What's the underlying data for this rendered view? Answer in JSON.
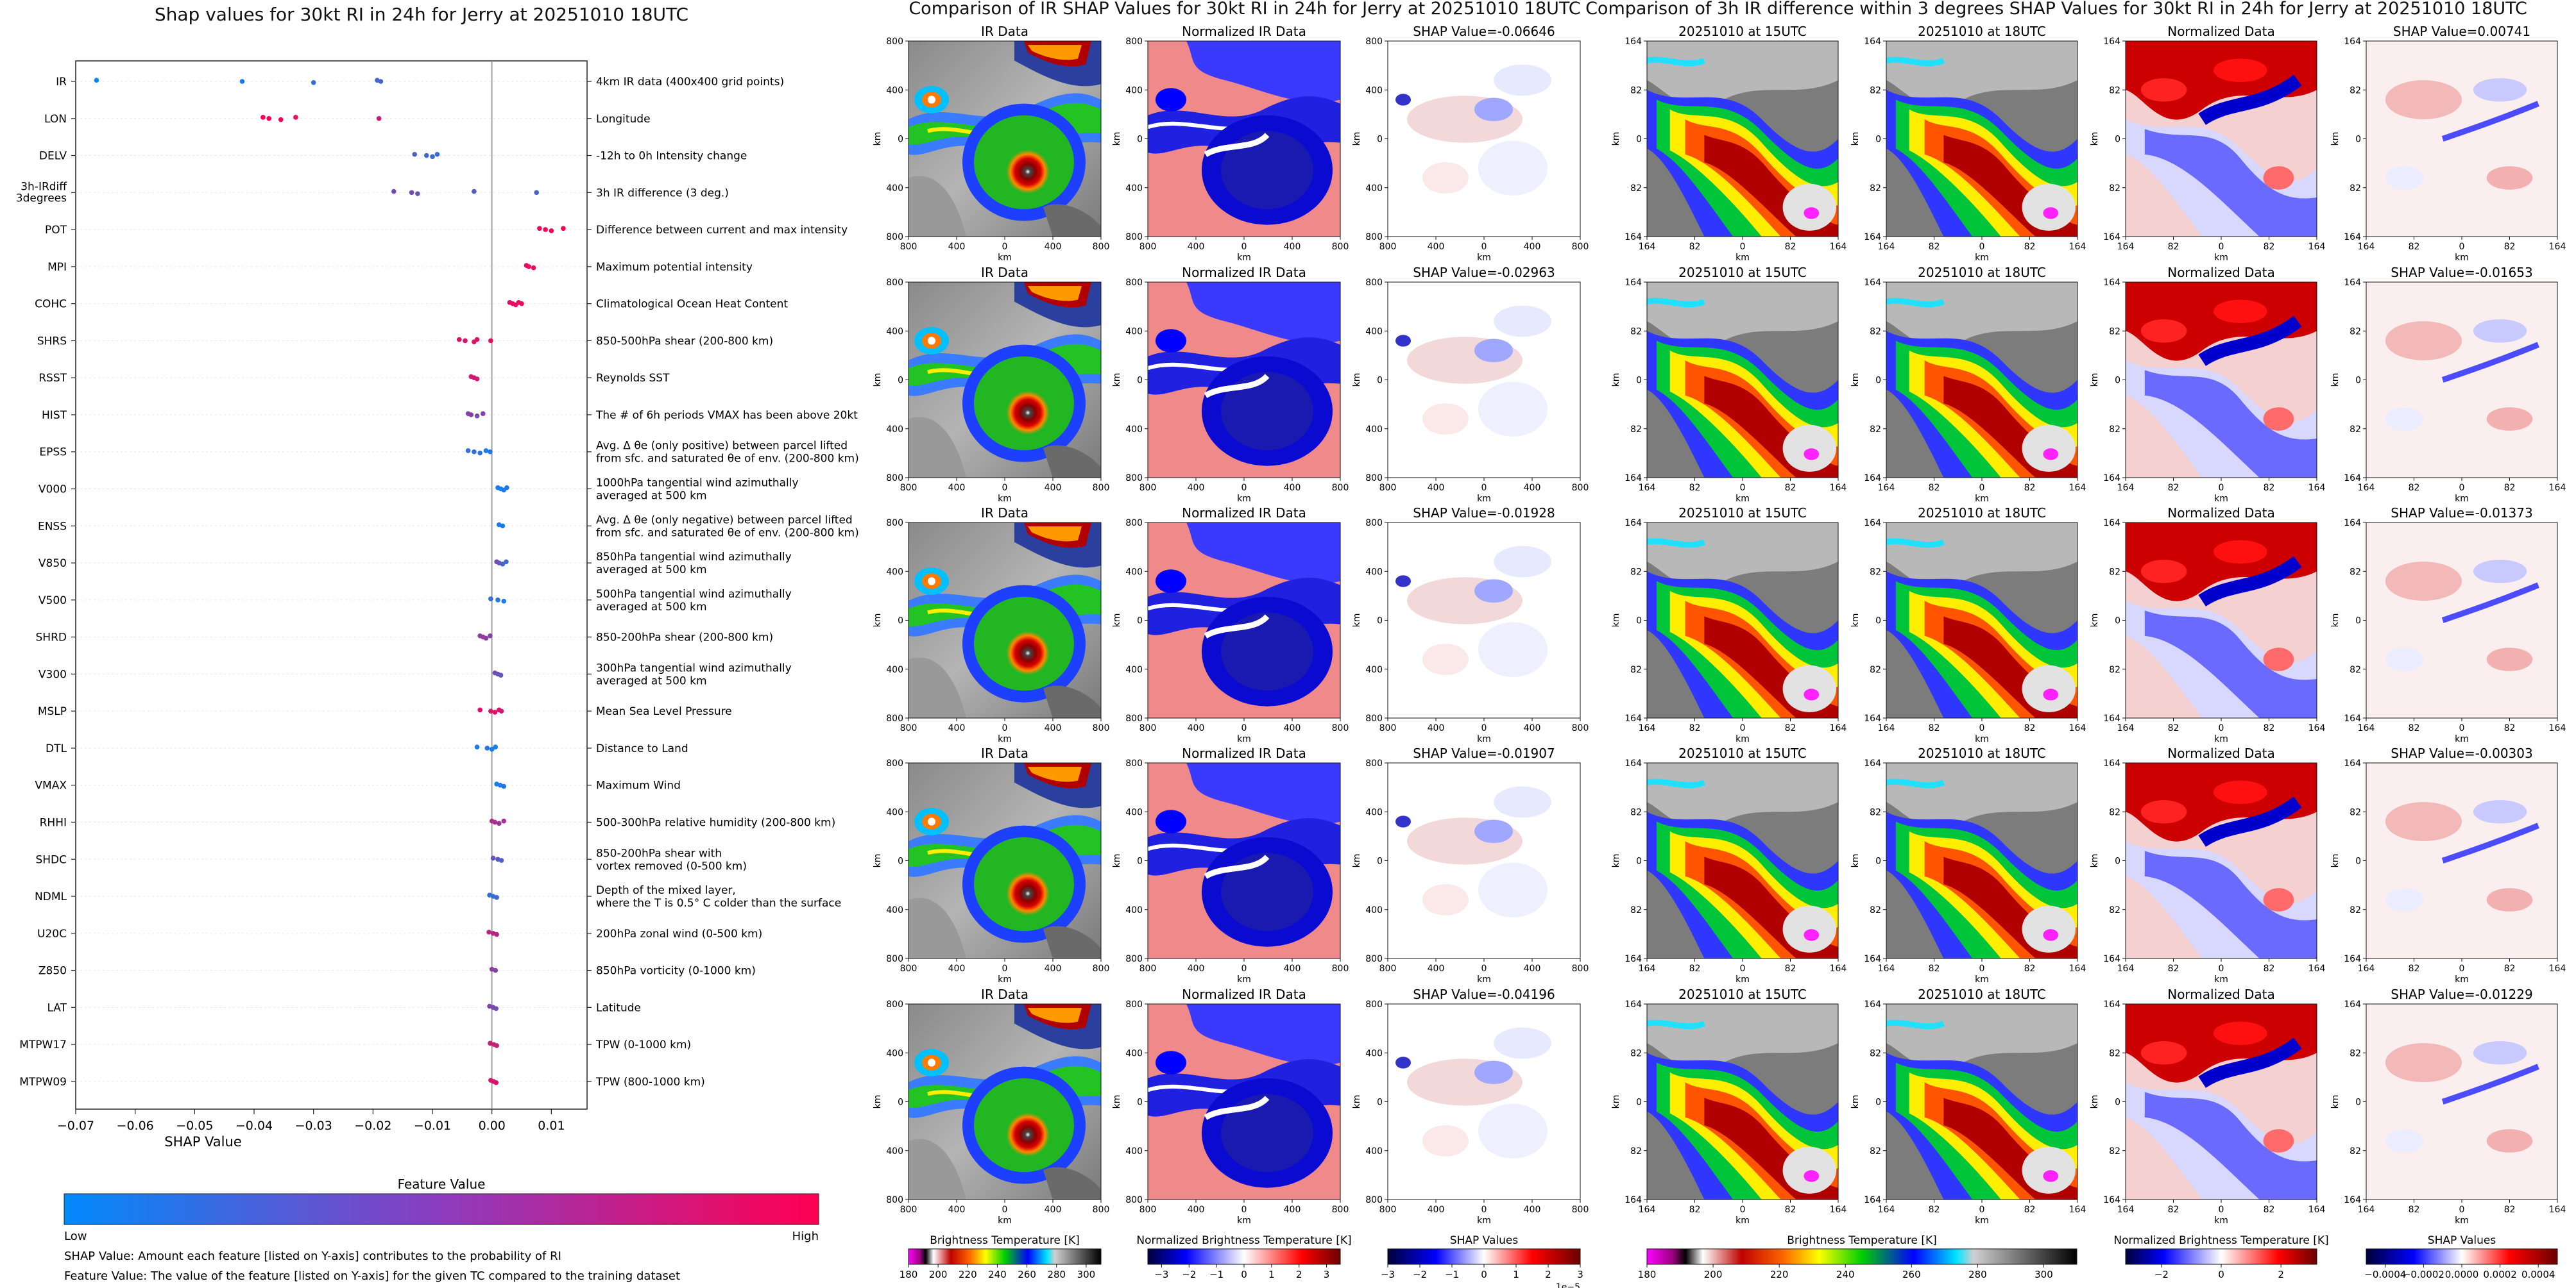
{
  "titles": {
    "left": "Shap values for 30kt RI in 24h for Jerry at 20251010 18UTC",
    "middle": "Comparison of IR SHAP Values for 30kt RI in 24h for Jerry at 20251010 18UTC",
    "right": "Comparison of 3h IR difference within 3 degrees SHAP Values for 30kt RI in 24h for Jerry at 20251010 18UTC"
  },
  "chart_data": {
    "type": "scatter",
    "title": "Shap values for 30kt RI in 24h for Jerry at 20251010 18UTC",
    "xlabel": "SHAP Value",
    "xlim": [
      -0.07,
      0.016
    ],
    "xticks": [
      -0.07,
      -0.06,
      -0.05,
      -0.04,
      -0.03,
      -0.02,
      -0.01,
      0.0,
      0.01
    ],
    "xtick_labels": [
      "−0.07",
      "−0.06",
      "−0.05",
      "−0.04",
      "−0.03",
      "−0.02",
      "−0.01",
      "0.00",
      "0.01"
    ],
    "features": [
      {
        "name": "IR",
        "desc": [
          "4km IR data (400x400 grid points)"
        ],
        "points": [
          [
            -0.0665,
            0.0
          ],
          [
            -0.042,
            0.1
          ],
          [
            -0.03,
            0.2
          ],
          [
            -0.0193,
            0.25
          ],
          [
            -0.0187,
            0.3
          ]
        ]
      },
      {
        "name": "LON",
        "desc": [
          "Longitude"
        ],
        "points": [
          [
            -0.0385,
            1.0
          ],
          [
            -0.0375,
            1.0
          ],
          [
            -0.0355,
            0.95
          ],
          [
            -0.033,
            0.9
          ],
          [
            -0.019,
            0.8
          ]
        ]
      },
      {
        "name": "DELV",
        "desc": [
          "-12h to 0h Intensity change"
        ],
        "points": [
          [
            -0.013,
            0.3
          ],
          [
            -0.011,
            0.25
          ],
          [
            -0.01,
            0.22
          ],
          [
            -0.0092,
            0.2
          ]
        ]
      },
      {
        "name": "3h-IRdiff 3degrees",
        "desc": [
          "3h IR difference (3 deg.)"
        ],
        "points": [
          [
            -0.0165,
            0.45
          ],
          [
            -0.0135,
            0.45
          ],
          [
            -0.0125,
            0.4
          ],
          [
            -0.003,
            0.35
          ],
          [
            0.0075,
            0.3
          ]
        ]
      },
      {
        "name": "POT",
        "desc": [
          "Difference between current and max intensity"
        ],
        "points": [
          [
            0.008,
            0.95
          ],
          [
            0.009,
            0.95
          ],
          [
            0.01,
            0.97
          ],
          [
            0.012,
            1.0
          ]
        ]
      },
      {
        "name": "MPI",
        "desc": [
          "Maximum potential intensity"
        ],
        "points": [
          [
            0.0058,
            0.9
          ],
          [
            0.0062,
            0.95
          ],
          [
            0.007,
            0.92
          ]
        ]
      },
      {
        "name": "COHC",
        "desc": [
          "Climatological Ocean Heat Content"
        ],
        "points": [
          [
            0.003,
            0.9
          ],
          [
            0.0035,
            0.9
          ],
          [
            0.004,
            0.9
          ],
          [
            0.0045,
            0.9
          ],
          [
            0.005,
            0.92
          ]
        ]
      },
      {
        "name": "SHRS",
        "desc": [
          "850-500hPa shear (200-800 km)"
        ],
        "points": [
          [
            -0.0055,
            0.9
          ],
          [
            -0.0045,
            0.85
          ],
          [
            -0.003,
            0.9
          ],
          [
            -0.0025,
            0.85
          ],
          [
            -0.0002,
            0.9
          ]
        ]
      },
      {
        "name": "RSST",
        "desc": [
          "Reynolds SST"
        ],
        "points": [
          [
            -0.0035,
            0.8
          ],
          [
            -0.003,
            0.85
          ],
          [
            -0.0025,
            0.8
          ]
        ]
      },
      {
        "name": "HIST",
        "desc": [
          "The # of 6h periods VMAX has been above 20kt"
        ],
        "points": [
          [
            -0.004,
            0.5
          ],
          [
            -0.0035,
            0.55
          ],
          [
            -0.0025,
            0.45
          ],
          [
            -0.0015,
            0.5
          ]
        ]
      },
      {
        "name": "EPSS",
        "desc": [
          "Avg. Δ θe (only positive) between parcel lifted",
          "from sfc. and saturated θe of env. (200-800 km)"
        ],
        "points": [
          [
            -0.004,
            0.2
          ],
          [
            -0.003,
            0.2
          ],
          [
            -0.002,
            0.15
          ],
          [
            -0.001,
            0.1
          ],
          [
            -0.0003,
            0.1
          ]
        ]
      },
      {
        "name": "V000",
        "desc": [
          "1000hPa tangential wind azimuthally",
          "averaged at 500 km"
        ],
        "points": [
          [
            0.001,
            0.1
          ],
          [
            0.0015,
            0.1
          ],
          [
            0.002,
            0.1
          ],
          [
            0.0025,
            0.12
          ]
        ]
      },
      {
        "name": "ENSS",
        "desc": [
          "Avg. Δ θe (only negative) between parcel lifted",
          "from sfc. and saturated θe of env. (200-800 km)"
        ],
        "points": [
          [
            0.0012,
            0.1
          ],
          [
            0.0018,
            0.1
          ]
        ]
      },
      {
        "name": "V850",
        "desc": [
          "850hPa tangential wind azimuthally",
          "averaged at 500 km"
        ],
        "points": [
          [
            0.0008,
            0.45
          ],
          [
            0.0012,
            0.4
          ],
          [
            0.0018,
            0.3
          ],
          [
            0.0024,
            0.25
          ]
        ]
      },
      {
        "name": "V500",
        "desc": [
          "500hPa tangential wind azimuthally",
          "averaged at 500 km"
        ],
        "points": [
          [
            -0.0002,
            0.2
          ],
          [
            0.001,
            0.15
          ],
          [
            0.002,
            0.1
          ]
        ]
      },
      {
        "name": "SHRD",
        "desc": [
          "850-200hPa shear (200-800 km)"
        ],
        "points": [
          [
            -0.002,
            0.55
          ],
          [
            -0.0015,
            0.6
          ],
          [
            -0.001,
            0.55
          ],
          [
            -0.0003,
            0.5
          ]
        ]
      },
      {
        "name": "V300",
        "desc": [
          "300hPa tangential wind azimuthally",
          "averaged at 500 km"
        ],
        "points": [
          [
            0.0005,
            0.45
          ],
          [
            0.001,
            0.4
          ],
          [
            0.0015,
            0.4
          ]
        ]
      },
      {
        "name": "MSLP",
        "desc": [
          "Mean Sea Level Pressure"
        ],
        "points": [
          [
            -0.002,
            0.9
          ],
          [
            -0.0002,
            0.85
          ],
          [
            0.0005,
            0.9
          ],
          [
            0.0012,
            0.85
          ],
          [
            0.0016,
            0.8
          ]
        ]
      },
      {
        "name": "DTL",
        "desc": [
          "Distance to Land"
        ],
        "points": [
          [
            -0.0025,
            0.1
          ],
          [
            -0.0008,
            0.15
          ],
          [
            0.0,
            0.1
          ],
          [
            0.0006,
            0.12
          ]
        ]
      },
      {
        "name": "VMAX",
        "desc": [
          "Maximum Wind"
        ],
        "points": [
          [
            0.0008,
            0.1
          ],
          [
            0.0014,
            0.1
          ],
          [
            0.002,
            0.15
          ]
        ]
      },
      {
        "name": "RHHI",
        "desc": [
          "500-300hPa relative humidity (200-800 km)"
        ],
        "points": [
          [
            0.0,
            0.7
          ],
          [
            0.0005,
            0.65
          ],
          [
            0.0012,
            0.6
          ],
          [
            0.002,
            0.65
          ]
        ]
      },
      {
        "name": "SHDC",
        "desc": [
          "850-200hPa shear with",
          "vortex removed (0-500 km)"
        ],
        "points": [
          [
            0.0002,
            0.4
          ],
          [
            0.001,
            0.35
          ],
          [
            0.0016,
            0.3
          ]
        ]
      },
      {
        "name": "NDML",
        "desc": [
          "Depth of the mixed layer,",
          "where the T is 0.5° C colder than the surface"
        ],
        "points": [
          [
            -0.0004,
            0.2
          ],
          [
            0.0002,
            0.2
          ],
          [
            0.0008,
            0.25
          ]
        ]
      },
      {
        "name": "U20C",
        "desc": [
          "200hPa zonal wind (0-500 km)"
        ],
        "points": [
          [
            -0.0005,
            0.7
          ],
          [
            0.0002,
            0.75
          ],
          [
            0.0008,
            0.7
          ]
        ]
      },
      {
        "name": "Z850",
        "desc": [
          "850hPa vorticity (0-1000 km)"
        ],
        "points": [
          [
            0.0,
            0.55
          ],
          [
            0.0006,
            0.5
          ]
        ]
      },
      {
        "name": "LAT",
        "desc": [
          "Latitude"
        ],
        "points": [
          [
            -0.0004,
            0.5
          ],
          [
            0.0002,
            0.45
          ],
          [
            0.0007,
            0.45
          ]
        ]
      },
      {
        "name": "MTPW17",
        "desc": [
          "TPW (0-1000 km)"
        ],
        "points": [
          [
            -0.0003,
            0.75
          ],
          [
            0.0003,
            0.8
          ],
          [
            0.0008,
            0.75
          ]
        ]
      },
      {
        "name": "MTPW09",
        "desc": [
          "TPW (800-1000 km)"
        ],
        "points": [
          [
            -0.0002,
            0.85
          ],
          [
            0.0003,
            0.85
          ],
          [
            0.0007,
            0.85
          ]
        ]
      }
    ],
    "feature_value_colorbar": {
      "title": "Feature Value",
      "low_label": "Low",
      "high_label": "High",
      "low_color": "#008afb",
      "high_color": "#ff0052"
    }
  },
  "footnotes": [
    "SHAP Value: Amount each feature [listed on Y-axis] contributes to the probability of RI",
    "Feature Value: The value of the feature [listed on Y-axis] for the given TC compared to the training dataset"
  ],
  "ir_panels": {
    "col_titles": [
      "IR Data",
      "Normalized IR Data"
    ],
    "shap_titles": [
      "SHAP Value=-0.06646",
      "SHAP Value=-0.02963",
      "SHAP Value=-0.01928",
      "SHAP Value=-0.01907",
      "SHAP Value=-0.04196"
    ],
    "axis_label": "km",
    "ticks": [
      "800",
      "400",
      "0",
      "400",
      "800"
    ],
    "y_ticks": [
      "800",
      "400",
      "0",
      "400",
      "800"
    ]
  },
  "diff_panels": {
    "col_titles": [
      "20251010 at 15UTC",
      "20251010 at 18UTC",
      "Normalized Data"
    ],
    "shap_titles": [
      "SHAP Value=0.00741",
      "SHAP Value=-0.01653",
      "SHAP Value=-0.01373",
      "SHAP Value=-0.00303",
      "SHAP Value=-0.01229"
    ],
    "axis_label": "km",
    "ticks": [
      "164",
      "82",
      "0",
      "82",
      "164"
    ],
    "y_ticks": [
      "164",
      "82",
      "0",
      "82",
      "164"
    ]
  },
  "colorbars": {
    "bt_left": {
      "label": "Brightness Temperature [K]",
      "ticks": [
        "180",
        "200",
        "220",
        "240",
        "260",
        "280",
        "300"
      ],
      "range": [
        180,
        310
      ]
    },
    "norm_left": {
      "label": "Normalized Brightness Temperature [K]",
      "ticks": [
        "−3",
        "−2",
        "−1",
        "0",
        "1",
        "2",
        "3"
      ],
      "range": [
        -3.5,
        3.5
      ]
    },
    "shap_left": {
      "label": "SHAP Values",
      "ticks": [
        "−3",
        "−2",
        "−1",
        "0",
        "1",
        "2",
        "3"
      ],
      "range": [
        -3,
        3
      ],
      "offset": "1e−5"
    },
    "bt_right": {
      "label": "Brightness Temperature [K]",
      "ticks": [
        "180",
        "200",
        "220",
        "240",
        "260",
        "280",
        "300"
      ],
      "range": [
        180,
        310
      ]
    },
    "norm_right": {
      "label": "Normalized Brightness Temperature [K]",
      "ticks": [
        "−2",
        "0",
        "2"
      ],
      "range": [
        -3.2,
        3.2
      ]
    },
    "shap_right": {
      "label": "SHAP Values",
      "ticks": [
        "−0.0004",
        "−0.0002",
        "0.0000",
        "0.0002",
        "0.0004"
      ],
      "range": [
        -0.0005,
        0.0005
      ]
    }
  }
}
